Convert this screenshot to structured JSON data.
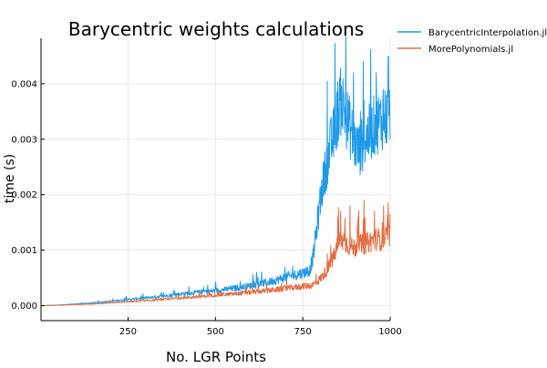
{
  "chart_data": {
    "type": "line",
    "title": "Barycentric weights calculations",
    "xlabel": "No. LGR Points",
    "ylabel": "time (s)",
    "xlim": [
      1,
      1000
    ],
    "ylim": [
      -0.00027,
      0.00482
    ],
    "xticks": [
      250,
      500,
      750,
      1000
    ],
    "xtick_labels": [
      "250",
      "500",
      "750",
      "1000"
    ],
    "yticks": [
      0.0,
      0.001,
      0.002,
      0.003,
      0.004
    ],
    "ytick_labels": [
      "0.000",
      "0.001",
      "0.002",
      "0.003",
      "0.004"
    ],
    "grid": true,
    "legend_position": "top-right outside",
    "series": [
      {
        "name": "BarycentricInterpolation.jl",
        "color": "#1f9ae8",
        "x": [
          1,
          50,
          100,
          150,
          200,
          250,
          300,
          350,
          400,
          450,
          500,
          550,
          600,
          650,
          700,
          750,
          770,
          780,
          790,
          800,
          810,
          820,
          830,
          840,
          850,
          860,
          870,
          880,
          890,
          900,
          910,
          920,
          930,
          940,
          950,
          960,
          970,
          980,
          990,
          1000
        ],
        "values": [
          0.0,
          1e-05,
          3e-05,
          5e-05,
          8e-05,
          0.00011,
          0.00014,
          0.00017,
          0.00021,
          0.00024,
          0.00027,
          0.00031,
          0.00036,
          0.00042,
          0.00051,
          0.00059,
          0.00064,
          0.0009,
          0.0014,
          0.0019,
          0.0023,
          0.0026,
          0.0029,
          0.0031,
          0.0035,
          0.0037,
          0.0035,
          0.0033,
          0.0031,
          0.0029,
          0.0028,
          0.0029,
          0.003,
          0.0031,
          0.0032,
          0.0033,
          0.0033,
          0.0034,
          0.0034,
          0.0035
        ],
        "spikes": [
          {
            "x": 855,
            "y": 0.0041
          },
          {
            "x": 860,
            "y": 0.0039
          },
          {
            "x": 880,
            "y": 0.0037
          },
          {
            "x": 895,
            "y": 0.0042
          },
          {
            "x": 915,
            "y": 0.0035
          },
          {
            "x": 925,
            "y": 0.0037
          },
          {
            "x": 945,
            "y": 0.0036
          },
          {
            "x": 960,
            "y": 0.0042
          },
          {
            "x": 980,
            "y": 0.0039
          },
          {
            "x": 995,
            "y": 0.0045
          }
        ]
      },
      {
        "name": "MorePolynomials.jl",
        "color": "#e26f46",
        "x": [
          1,
          50,
          100,
          150,
          200,
          250,
          300,
          350,
          400,
          450,
          500,
          550,
          600,
          650,
          700,
          750,
          770,
          780,
          800,
          820,
          840,
          850,
          860,
          870,
          880,
          890,
          900,
          910,
          920,
          930,
          940,
          950,
          960,
          970,
          980,
          990,
          1000
        ],
        "values": [
          0.0,
          1e-05,
          2e-05,
          3e-05,
          5e-05,
          7e-05,
          9e-05,
          0.00011,
          0.00014,
          0.00016,
          0.00019,
          0.00021,
          0.00024,
          0.00027,
          0.00031,
          0.00035,
          0.00036,
          0.00038,
          0.00048,
          0.00065,
          0.0009,
          0.0011,
          0.0012,
          0.00115,
          0.0011,
          0.00105,
          0.00105,
          0.0011,
          0.0011,
          0.00112,
          0.00115,
          0.00118,
          0.0012,
          0.0012,
          0.0012,
          0.00123,
          0.00126
        ],
        "spikes": [
          {
            "x": 850,
            "y": 0.0016
          },
          {
            "x": 858,
            "y": 0.0017
          },
          {
            "x": 870,
            "y": 0.0014
          },
          {
            "x": 885,
            "y": 0.0018
          },
          {
            "x": 908,
            "y": 0.0016
          },
          {
            "x": 925,
            "y": 0.0019
          },
          {
            "x": 955,
            "y": 0.0017
          },
          {
            "x": 978,
            "y": 0.0015
          },
          {
            "x": 995,
            "y": 0.0016
          }
        ]
      }
    ]
  }
}
